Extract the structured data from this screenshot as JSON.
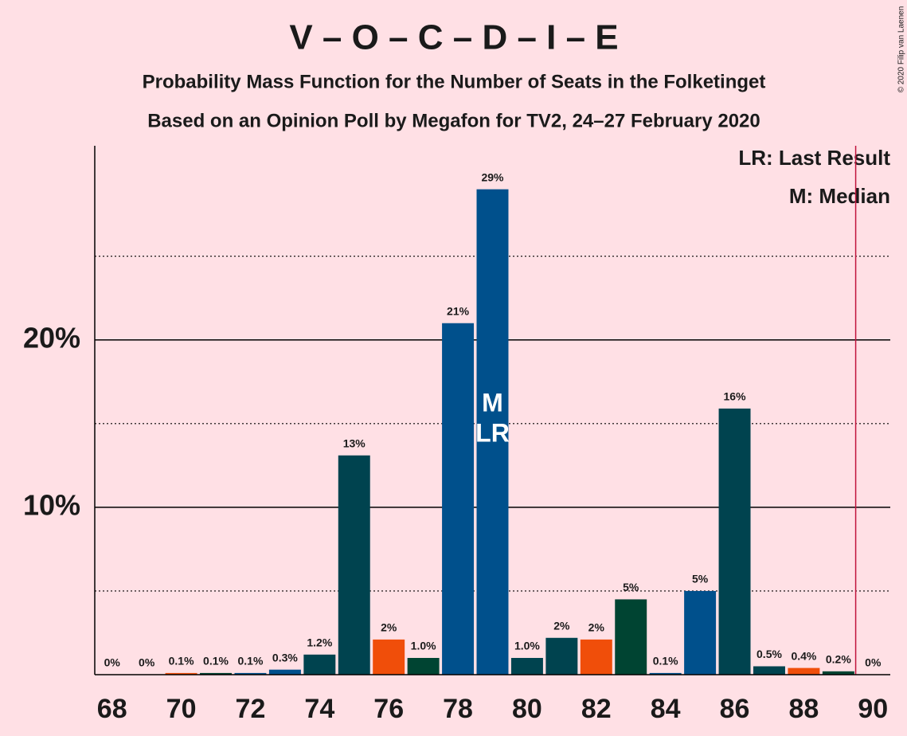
{
  "chart_data": {
    "type": "bar",
    "title": "V – O – C – D – I – E",
    "subtitle": "Probability Mass Function for the Number of Seats in the Folketinget",
    "subtitle2": "Based on an Opinion Poll by Megafon for TV2, 24–27 February 2020",
    "copyright": "© 2020 Filip van Laenen",
    "legend": [
      "LR: Last Result",
      "M: Median"
    ],
    "x": [
      68,
      69,
      70,
      71,
      72,
      73,
      74,
      75,
      76,
      77,
      78,
      79,
      80,
      81,
      82,
      83,
      84,
      85,
      86,
      87,
      88,
      89,
      90
    ],
    "values": [
      0,
      0,
      0.1,
      0.1,
      0.1,
      0.3,
      1.2,
      13.1,
      2.1,
      1.0,
      21.0,
      29.0,
      1.0,
      2.2,
      2.1,
      4.5,
      0.1,
      5.0,
      15.9,
      0.5,
      0.4,
      0.2,
      0
    ],
    "value_labels": [
      "0%",
      "0%",
      "0.1%",
      "0.1%",
      "0.1%",
      "0.3%",
      "1.2%",
      "13%",
      "2%",
      "1.0%",
      "21%",
      "29%",
      "1.0%",
      "2%",
      "2%",
      "5%",
      "0.1%",
      "5%",
      "16%",
      "0.5%",
      "0.4%",
      "0.2%",
      "0%"
    ],
    "colors": [
      "#00434f",
      "#00434f",
      "#f04e0a",
      "#004432",
      "#00508c",
      "#00508c",
      "#00434f",
      "#00434f",
      "#f04e0a",
      "#004432",
      "#00508c",
      "#00508c",
      "#00434f",
      "#00434f",
      "#f04e0a",
      "#004432",
      "#00508c",
      "#00508c",
      "#00434f",
      "#00434f",
      "#f04e0a",
      "#004432",
      "#00508c"
    ],
    "annotations": [
      {
        "x": 79,
        "text": "M"
      },
      {
        "x": 79,
        "text": "LR"
      }
    ],
    "threshold": 89.5,
    "threshold_color": "#c0143c",
    "xlim": [
      67.5,
      90.5
    ],
    "xticks": [
      68,
      70,
      72,
      74,
      76,
      78,
      80,
      82,
      84,
      86,
      88,
      90
    ],
    "ylim": [
      0,
      31.6
    ],
    "yticks": [
      {
        "value": 10,
        "label": "10%"
      },
      {
        "value": 20,
        "label": "20%"
      }
    ],
    "minor_yticks": [
      5,
      15,
      25
    ],
    "grid": true
  }
}
